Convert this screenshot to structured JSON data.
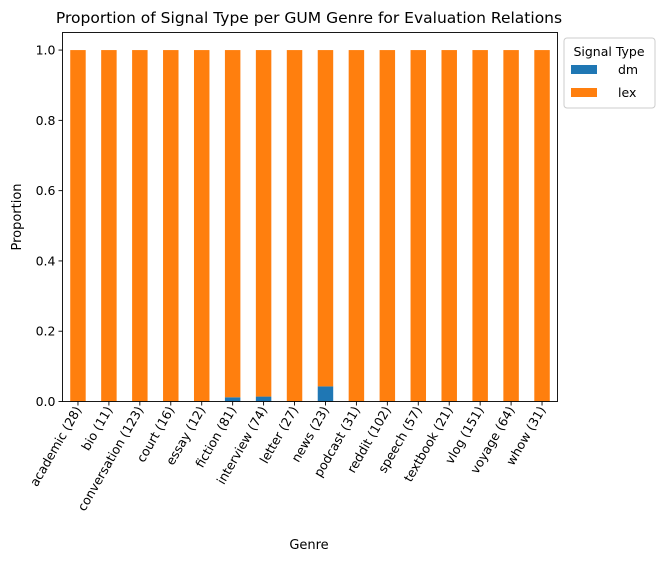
{
  "chart_data": {
    "type": "bar",
    "stacked": true,
    "title": "Proportion of Signal Type per GUM Genre for Evaluation Relations",
    "xlabel": "Genre",
    "ylabel": "Proportion",
    "ylim": [
      0,
      1.05
    ],
    "yticks": [
      "0.0",
      "0.2",
      "0.4",
      "0.6",
      "0.8",
      "1.0"
    ],
    "categories": [
      "academic (28)",
      "bio (11)",
      "conversation (123)",
      "court (16)",
      "essay (12)",
      "fiction (81)",
      "interview (74)",
      "letter (27)",
      "news (23)",
      "podcast (31)",
      "reddit (102)",
      "speech (57)",
      "textbook (21)",
      "vlog (151)",
      "voyage (64)",
      "whow (31)"
    ],
    "series": [
      {
        "name": "dm",
        "color": "#1f77b4",
        "values": [
          0,
          0,
          0,
          0,
          0,
          0.012,
          0.014,
          0,
          0.043,
          0,
          0,
          0,
          0,
          0,
          0,
          0
        ]
      },
      {
        "name": "lex",
        "color": "#ff7f0e",
        "values": [
          1,
          1,
          1,
          1,
          1,
          0.988,
          0.986,
          1,
          0.957,
          1,
          1,
          1,
          1,
          1,
          1,
          1
        ]
      }
    ],
    "grid": false,
    "legend": {
      "title": "Signal Type",
      "placement": "outside-top-right"
    }
  }
}
